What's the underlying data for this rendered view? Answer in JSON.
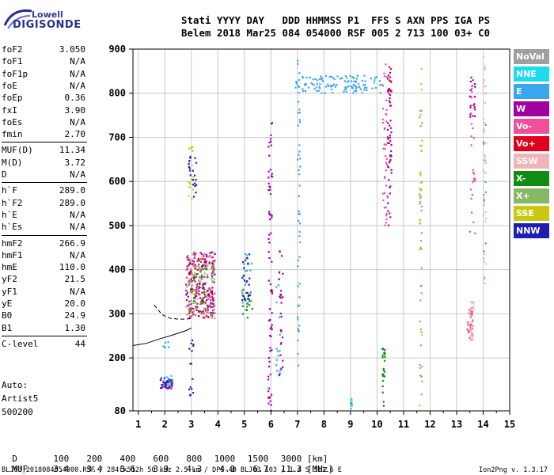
{
  "logo": {
    "line1": "Lowell",
    "line2": "DIGISONDE"
  },
  "header": {
    "line1": "Stati YYYY DAY   DDD HHMMSS P1  FFS S AXN PPS IGA PS",
    "line2": "Belem 2018 Mar25 084 054000 RSF 005 2 713 100 03+ C0"
  },
  "params": {
    "group1": [
      {
        "label": "foF2",
        "value": "3.050"
      },
      {
        "label": "foF1",
        "value": "N/A"
      },
      {
        "label": "foF1p",
        "value": "N/A"
      },
      {
        "label": "foE",
        "value": "N/A"
      },
      {
        "label": "foEp",
        "value": "0.36"
      },
      {
        "label": "fxI",
        "value": "3.90"
      },
      {
        "label": "foEs",
        "value": "N/A"
      },
      {
        "label": "fmin",
        "value": "2.70"
      }
    ],
    "group2": [
      {
        "label": "MUF(D)",
        "value": "11.34"
      },
      {
        "label": "M(D)",
        "value": "3.72"
      },
      {
        "label": "D",
        "value": "N/A"
      }
    ],
    "group3": [
      {
        "label": "h`F",
        "value": "289.0"
      },
      {
        "label": "h`F2",
        "value": "289.0"
      },
      {
        "label": "h`E",
        "value": "N/A"
      },
      {
        "label": "h`Es",
        "value": "N/A"
      }
    ],
    "group4": [
      {
        "label": "hmF2",
        "value": "266.9"
      },
      {
        "label": "hmF1",
        "value": "N/A"
      },
      {
        "label": "hmE",
        "value": "110.0"
      },
      {
        "label": "yF2",
        "value": "21.5"
      },
      {
        "label": "yF1",
        "value": "N/A"
      },
      {
        "label": "yE",
        "value": "20.0"
      },
      {
        "label": "B0",
        "value": "24.9"
      },
      {
        "label": "B1",
        "value": "1.30"
      }
    ],
    "group5": [
      {
        "label": "C-level",
        "value": "44"
      }
    ]
  },
  "auto": {
    "line1": "Auto:",
    "line2": "Artist5",
    "line3": "500200"
  },
  "bottom_table": {
    "d_label": "D",
    "d_values": [
      "100",
      "200",
      "400",
      "600",
      "800",
      "1000",
      "1500",
      "3000"
    ],
    "d_unit": "[km]",
    "muf_label": "MUF",
    "muf_values": [
      "3.4",
      "3.4",
      "3.6",
      "3.9",
      "4.3",
      "4.9",
      "6.7",
      "11.3"
    ],
    "muf_unit": "[MHz]"
  },
  "footer": {
    "left": "BLJ03_2018084054000.RSF / 284fx512h 50 kHz 2.5 km / DPS-4D BLJ03 103 / 1.4 S 311.6 E",
    "right": "Ion2Png v. 1.3.17"
  },
  "legend": [
    {
      "label": "NoVal",
      "color": "#a0a0a0"
    },
    {
      "label": "NNE",
      "color": "#1fd9ee"
    },
    {
      "label": "E",
      "color": "#3aa6ee"
    },
    {
      "label": "W",
      "color": "#a000a0"
    },
    {
      "label": "Vo-",
      "color": "#f0509a"
    },
    {
      "label": "Vo+",
      "color": "#e0001e"
    },
    {
      "label": "SSW",
      "color": "#f0b4b4"
    },
    {
      "label": "X-",
      "color": "#138a13"
    },
    {
      "label": "X+",
      "color": "#86b866"
    },
    {
      "label": "SSE",
      "color": "#c8c812"
    },
    {
      "label": "NNW",
      "color": "#1e1eb4"
    }
  ],
  "chart_data": {
    "type": "scatter",
    "title": "",
    "xlabel": "",
    "ylabel": "",
    "xlim": [
      0.8,
      15.0
    ],
    "ylim": [
      80,
      900
    ],
    "x_ticks": [
      1,
      2,
      3,
      4,
      5,
      6,
      7,
      8,
      9,
      10,
      11,
      12,
      13,
      14,
      15
    ],
    "y_ticks": [
      80,
      200,
      300,
      400,
      500,
      600,
      700,
      800,
      900
    ],
    "grid": true,
    "legend_position": "right",
    "series": [
      {
        "name": "E",
        "color": "#3aa6ee",
        "clusters": [
          {
            "x": [
              6.9,
              10.2
            ],
            "y": [
              800,
              840
            ],
            "n": 120
          },
          {
            "x": [
              7.0,
              7.1
            ],
            "y": [
              180,
              880
            ],
            "n": 50
          },
          {
            "x": [
              6.2,
              6.4
            ],
            "y": [
              150,
              400
            ],
            "n": 20
          },
          {
            "x": [
              4.9,
              5.3
            ],
            "y": [
              320,
              440
            ],
            "n": 20
          },
          {
            "x": [
              1.9,
              2.2
            ],
            "y": [
              210,
              240
            ],
            "n": 6
          },
          {
            "x": [
              14.0,
              14.1
            ],
            "y": [
              420,
              740
            ],
            "n": 10
          },
          {
            "x": [
              9.0,
              9.05
            ],
            "y": [
              85,
              115
            ],
            "n": 8
          }
        ]
      },
      {
        "name": "W",
        "color": "#a000a0",
        "clusters": [
          {
            "x": [
              2.8,
              3.9
            ],
            "y": [
              300,
              440
            ],
            "n": 150
          },
          {
            "x": [
              5.9,
              6.05
            ],
            "y": [
              80,
              760
            ],
            "n": 70
          },
          {
            "x": [
              6.3,
              6.45
            ],
            "y": [
              150,
              450
            ],
            "n": 25
          },
          {
            "x": [
              10.4,
              10.55
            ],
            "y": [
              500,
              860
            ],
            "n": 50
          },
          {
            "x": [
              1.8,
              2.3
            ],
            "y": [
              130,
              150
            ],
            "n": 30
          },
          {
            "x": [
              13.5,
              13.7
            ],
            "y": [
              740,
              840
            ],
            "n": 20
          }
        ]
      },
      {
        "name": "Vo-",
        "color": "#f0509a",
        "clusters": [
          {
            "x": [
              2.8,
              3.9
            ],
            "y": [
              290,
              440
            ],
            "n": 80
          },
          {
            "x": [
              10.2,
              10.4
            ],
            "y": [
              500,
              880
            ],
            "n": 40
          },
          {
            "x": [
              13.4,
              13.6
            ],
            "y": [
              240,
              320
            ],
            "n": 30
          },
          {
            "x": [
              13.5,
              13.7
            ],
            "y": [
              480,
              840
            ],
            "n": 25
          }
        ]
      },
      {
        "name": "Vo+",
        "color": "#e0001e",
        "clusters": [
          {
            "x": [
              2.8,
              3.9
            ],
            "y": [
              290,
              440
            ],
            "n": 40
          },
          {
            "x": [
              10.45,
              10.55
            ],
            "y": [
              760,
              860
            ],
            "n": 10
          }
        ]
      },
      {
        "name": "SSW",
        "color": "#f0b4b4",
        "clusters": [
          {
            "x": [
              13.5,
              13.65
            ],
            "y": [
              240,
              330
            ],
            "n": 30
          },
          {
            "x": [
              14.0,
              14.1
            ],
            "y": [
              360,
              890
            ],
            "n": 40
          }
        ]
      },
      {
        "name": "X-",
        "color": "#138a13",
        "clusters": [
          {
            "x": [
              2.9,
              3.9
            ],
            "y": [
              290,
              420
            ],
            "n": 40
          },
          {
            "x": [
              10.2,
              10.3
            ],
            "y": [
              85,
              240
            ],
            "n": 25
          },
          {
            "x": [
              4.9,
              5.3
            ],
            "y": [
              290,
              370
            ],
            "n": 15
          }
        ]
      },
      {
        "name": "X+",
        "color": "#86b866",
        "clusters": [
          {
            "x": [
              2.9,
              3.9
            ],
            "y": [
              290,
              420
            ],
            "n": 30
          },
          {
            "x": [
              11.6,
              11.7
            ],
            "y": [
              90,
              860
            ],
            "n": 40
          }
        ]
      },
      {
        "name": "SSE",
        "color": "#c8c812",
        "clusters": [
          {
            "x": [
              3.0,
              3.8
            ],
            "y": [
              300,
              430
            ],
            "n": 20
          },
          {
            "x": [
              11.6,
              11.7
            ],
            "y": [
              90,
              860
            ],
            "n": 20
          },
          {
            "x": [
              2.9,
              3.1
            ],
            "y": [
              560,
              680
            ],
            "n": 15
          }
        ]
      },
      {
        "name": "NNW",
        "color": "#1e1eb4",
        "clusters": [
          {
            "x": [
              2.9,
              3.1
            ],
            "y": [
              100,
              240
            ],
            "n": 15
          },
          {
            "x": [
              2.9,
              3.2
            ],
            "y": [
              560,
              660
            ],
            "n": 20
          },
          {
            "x": [
              4.9,
              5.2
            ],
            "y": [
              330,
              440
            ],
            "n": 25
          },
          {
            "x": [
              1.8,
              2.3
            ],
            "y": [
              130,
              155
            ],
            "n": 20
          }
        ]
      },
      {
        "name": "NoVal",
        "color": "#a0a0a0",
        "clusters": [
          {
            "x": [
              2.8,
              3.9
            ],
            "y": [
              290,
              440
            ],
            "n": 15
          }
        ]
      },
      {
        "name": "NNE",
        "color": "#1fd9ee",
        "clusters": [
          {
            "x": [
              1.9,
              2.3
            ],
            "y": [
              135,
              160
            ],
            "n": 10
          },
          {
            "x": [
              9.0,
              9.05
            ],
            "y": [
              85,
              110
            ],
            "n": 4
          }
        ]
      }
    ],
    "trace_solid": {
      "x": [
        0.8,
        1.3,
        1.8,
        2.3,
        2.8,
        3.0
      ],
      "y": [
        228,
        233,
        243,
        252,
        262,
        268
      ]
    },
    "trace_dashed": {
      "x": [
        1.6,
        1.9,
        2.2,
        2.5,
        2.8,
        3.05
      ],
      "y": [
        320,
        298,
        290,
        288,
        288,
        290
      ]
    }
  }
}
